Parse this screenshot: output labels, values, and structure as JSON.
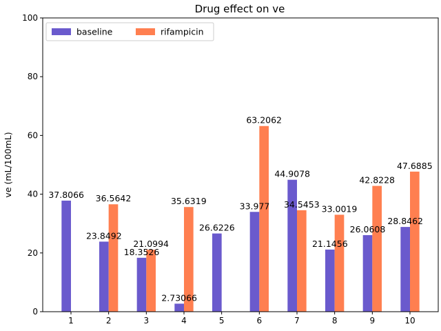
{
  "chart_data": {
    "type": "bar",
    "title": "Drug effect on ve",
    "xlabel": "",
    "ylabel": "ve (mL/100mL)",
    "ylim": [
      0,
      100
    ],
    "yticks": [
      0,
      20,
      40,
      60,
      80,
      100
    ],
    "categories": [
      "1",
      "2",
      "3",
      "4",
      "5",
      "6",
      "7",
      "8",
      "9",
      "10"
    ],
    "series": [
      {
        "name": "baseline",
        "color": "#6a5acd",
        "values": [
          37.8066,
          23.8492,
          18.3526,
          2.73066,
          26.6226,
          33.977,
          44.9078,
          21.1456,
          26.0608,
          28.8462
        ],
        "labels": [
          "37.8066",
          "23.8492",
          "18.3526",
          "2.73066",
          "26.6226",
          "33.977",
          "44.9078",
          "21.1456",
          "26.0608",
          "28.8462"
        ]
      },
      {
        "name": "rifampicin",
        "color": "#ff7f50",
        "values": [
          null,
          36.5642,
          21.0994,
          35.6319,
          null,
          63.2062,
          34.5453,
          33.0019,
          42.8228,
          47.6885
        ],
        "labels": [
          "",
          "36.5642",
          "21.0994",
          "35.6319",
          "",
          "63.2062",
          "34.5453",
          "33.0019",
          "42.8228",
          "47.6885"
        ]
      }
    ],
    "grid": false,
    "legend": "upper-left"
  }
}
